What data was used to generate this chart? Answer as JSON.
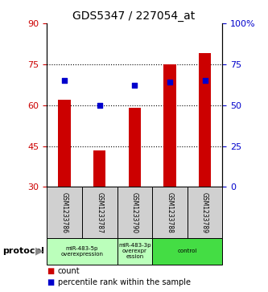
{
  "title": "GDS5347 / 227054_at",
  "samples": [
    "GSM1233786",
    "GSM1233787",
    "GSM1233790",
    "GSM1233788",
    "GSM1233789"
  ],
  "bar_values": [
    62.0,
    43.5,
    59.0,
    75.0,
    79.0
  ],
  "dot_values": [
    65,
    50,
    62,
    64,
    65
  ],
  "bar_color": "#cc0000",
  "dot_color": "#0000cc",
  "left_ylim": [
    30,
    90
  ],
  "right_ylim": [
    0,
    100
  ],
  "left_yticks": [
    30,
    45,
    60,
    75,
    90
  ],
  "right_yticks": [
    0,
    25,
    50,
    75,
    100
  ],
  "right_yticklabels": [
    "0",
    "25",
    "50",
    "75",
    "100%"
  ],
  "hlines": [
    45,
    60,
    75
  ],
  "protocol_groups": [
    {
      "label": "miR-483-5p\noverexpression",
      "start": 0,
      "end": 2,
      "color": "#bbffbb"
    },
    {
      "label": "miR-483-3p\noverexpr\nession",
      "start": 2,
      "end": 3,
      "color": "#bbffbb"
    },
    {
      "label": "control",
      "start": 3,
      "end": 5,
      "color": "#44dd44"
    }
  ],
  "protocol_label": "protocol",
  "legend_items": [
    {
      "label": "count",
      "color": "#cc0000"
    },
    {
      "label": "percentile rank within the sample",
      "color": "#0000cc"
    }
  ],
  "left_tick_color": "#cc0000",
  "right_tick_color": "#0000cc",
  "figsize": [
    3.33,
    3.63
  ],
  "dpi": 100
}
